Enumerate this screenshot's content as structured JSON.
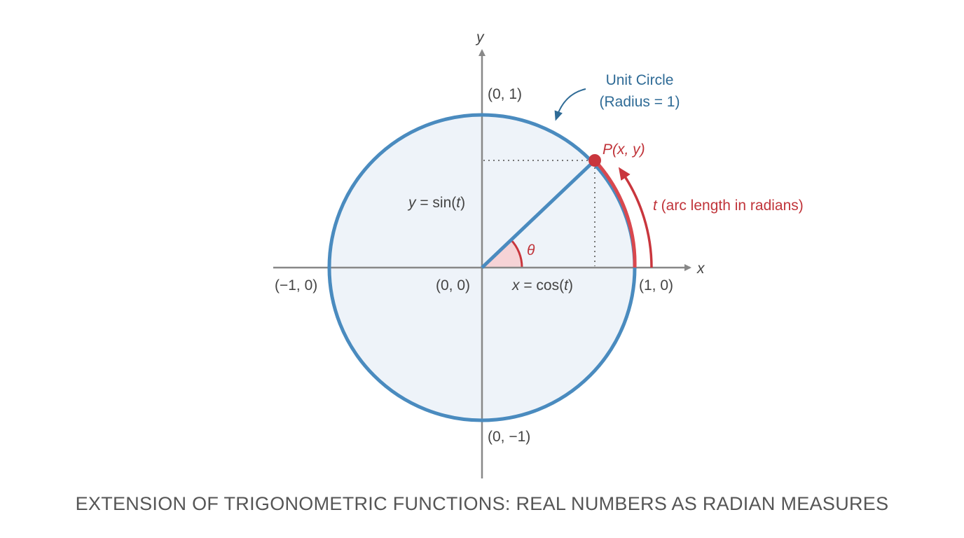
{
  "colors": {
    "circle": "#4a8bbf",
    "fill": "#eef3f9",
    "accent_red": "#c9363d",
    "axis": "#888888",
    "label_blue": "#2f6b96"
  },
  "axes": {
    "x_label": "x",
    "y_label": "y"
  },
  "points": {
    "top": "(0, 1)",
    "bottom": "(0, −1)",
    "left": "(−1, 0)",
    "right": "(1, 0)",
    "origin": "(0, 0)",
    "p": "P(x, y)"
  },
  "annotations": {
    "unit_circle_line1": "Unit Circle",
    "unit_circle_line2": "(Radius = 1)",
    "arc_t": "t",
    "arc_desc": " (arc length in radians)",
    "theta": "θ",
    "sin_y": "y",
    "sin_rest": " = sin(",
    "sin_t": "t",
    "sin_close": ")",
    "cos_x": "x",
    "cos_rest": " = cos(",
    "cos_t": "t",
    "cos_close": ")"
  },
  "caption": "EXTENSION OF TRIGONOMETRIC FUNCTIONS: REAL NUMBERS AS RADIAN MEASURES"
}
